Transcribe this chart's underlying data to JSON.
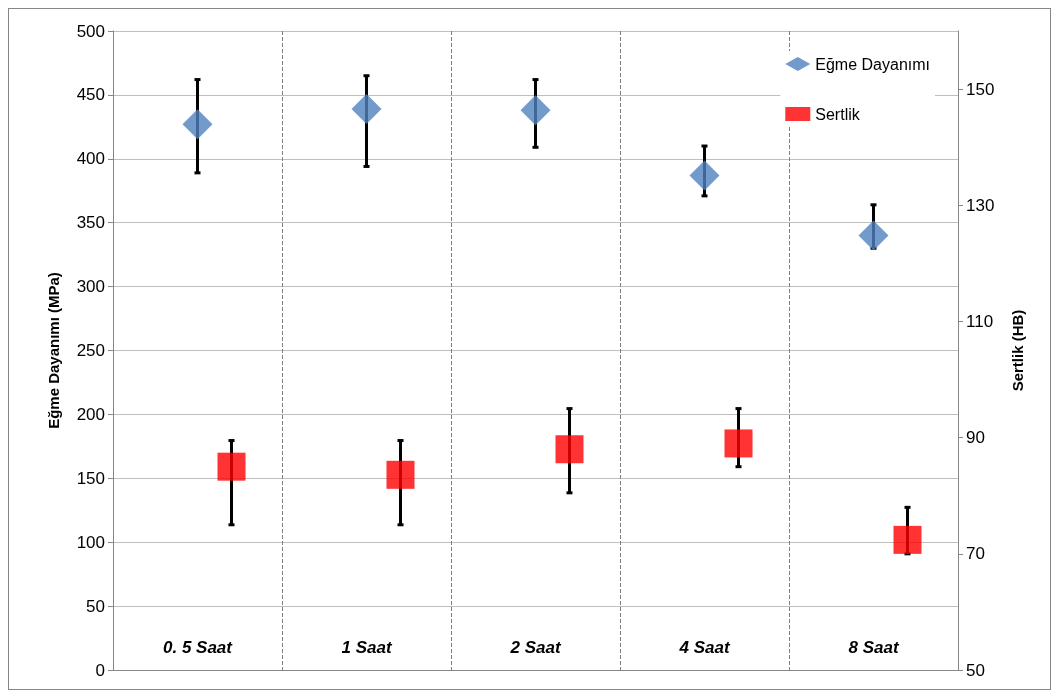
{
  "chart_data": {
    "type": "scatter",
    "ylabel": "Eğme Dayanımı (MPa)",
    "y2label": "Sertlik (HB)",
    "categories": [
      "0. 5 Saat",
      "1 Saat",
      "2 Saat",
      "4 Saat",
      "8 Saat"
    ],
    "series": [
      {
        "name": "Eğme Dayanımı",
        "color": "#4f81bd",
        "marker": "diamond",
        "values": [
          427,
          439,
          438,
          387,
          340
        ],
        "errors": [
          [
            389,
            462
          ],
          [
            394,
            465
          ],
          [
            409,
            462
          ],
          [
            371,
            410
          ],
          [
            330,
            364
          ]
        ]
      },
      {
        "name": "Sertlik",
        "color": "#ff0000",
        "marker": "square",
        "axis": "y2",
        "values": [
          85,
          83.6,
          88,
          89,
          72.4
        ],
        "errors": [
          [
            75,
            89.5
          ],
          [
            75,
            89.5
          ],
          [
            80.5,
            95
          ],
          [
            85,
            95
          ],
          [
            70,
            78
          ]
        ]
      }
    ],
    "ylim": [
      0,
      500
    ],
    "yticks": [
      0,
      50,
      100,
      150,
      200,
      250,
      300,
      350,
      400,
      450,
      500
    ],
    "y2lim": [
      50,
      160
    ],
    "y2ticks": [
      50,
      70,
      90,
      110,
      130,
      150
    ],
    "grid": true,
    "legend": "top right"
  }
}
